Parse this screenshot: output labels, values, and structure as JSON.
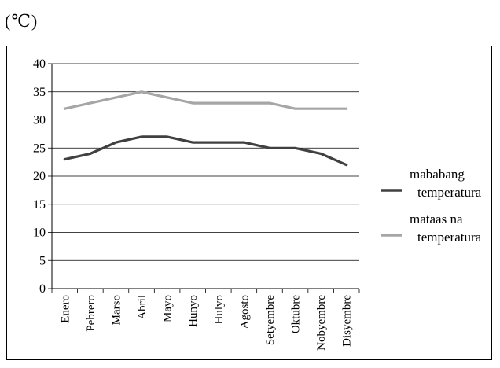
{
  "unit_label": "(℃)",
  "chart_data": {
    "type": "line",
    "categories": [
      "Enero",
      "Pebrero",
      "Marso",
      "Abril",
      "Mayo",
      "Hunyo",
      "Hulyo",
      "Agosto",
      "Setyembre",
      "Oktubre",
      "Nobyembre",
      "Disyembre"
    ],
    "ylim": [
      0,
      40
    ],
    "yticks": [
      0,
      5,
      10,
      15,
      20,
      25,
      30,
      35,
      40
    ],
    "grid": true,
    "legend_position": "right",
    "series": [
      {
        "name": "mababang temperatura",
        "label_lines": [
          "mababang",
          "temperatura"
        ],
        "color": "#404040",
        "values": [
          23,
          24,
          26,
          27,
          27,
          26,
          26,
          26,
          25,
          25,
          24,
          22
        ]
      },
      {
        "name": "mataas na temperatura",
        "label_lines": [
          "mataas na",
          "temperatura"
        ],
        "color": "#a6a6a6",
        "values": [
          32,
          33,
          34,
          35,
          34,
          33,
          33,
          33,
          33,
          32,
          32,
          32
        ]
      }
    ]
  }
}
